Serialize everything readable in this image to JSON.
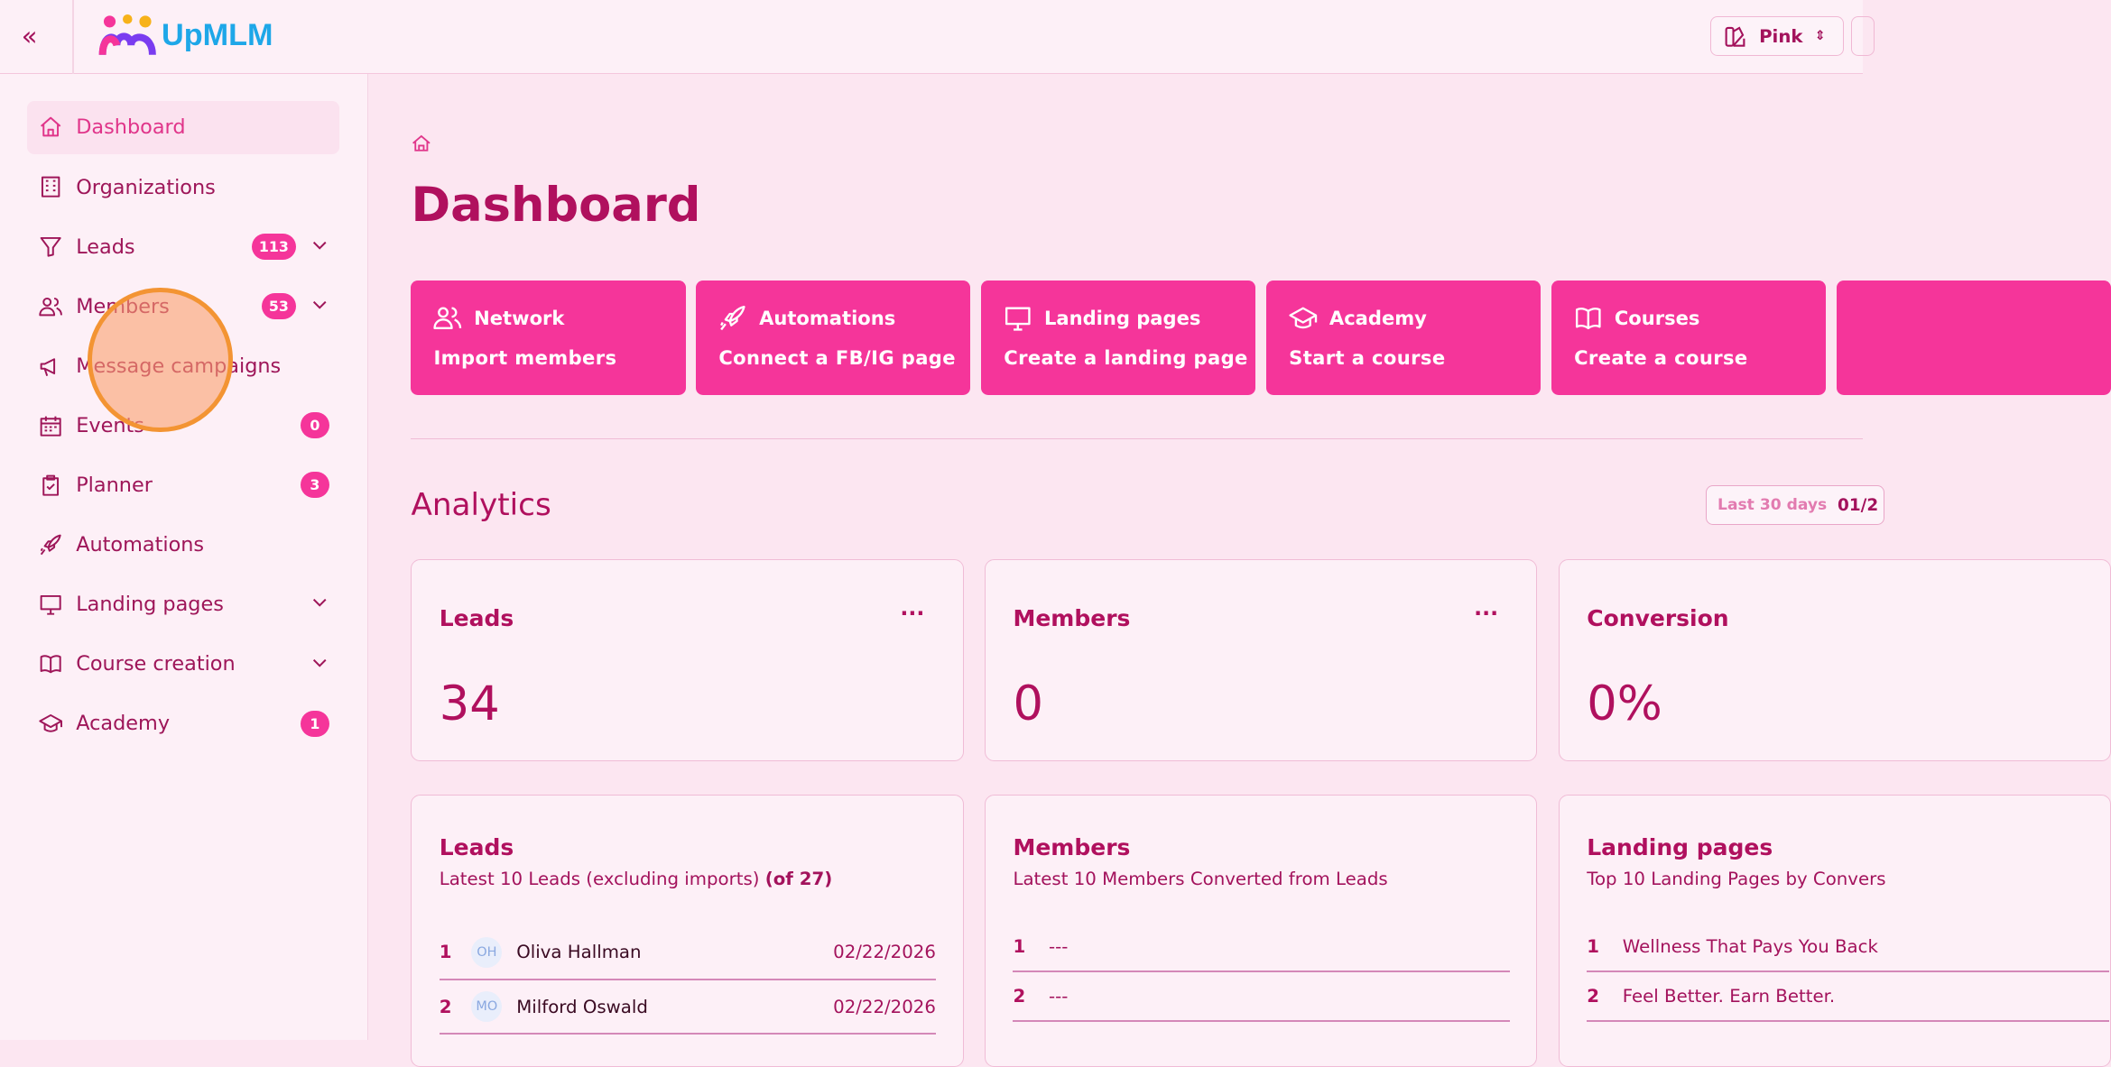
{
  "header": {
    "brand": "UpMLM",
    "theme_label": "Pink"
  },
  "sidebar": {
    "items": [
      {
        "label": "Dashboard",
        "icon": "home-icon",
        "active": true
      },
      {
        "label": "Organizations",
        "icon": "building-icon"
      },
      {
        "label": "Leads",
        "icon": "funnel-icon",
        "badge": "113",
        "expandable": true
      },
      {
        "label": "Members",
        "icon": "users-icon",
        "badge": "53",
        "expandable": true
      },
      {
        "label": "Message campaigns",
        "icon": "megaphone-icon"
      },
      {
        "label": "Events",
        "icon": "calendar-icon",
        "badge": "0"
      },
      {
        "label": "Planner",
        "icon": "clipboard-icon",
        "badge": "3"
      },
      {
        "label": "Automations",
        "icon": "rocket-icon"
      },
      {
        "label": "Landing pages",
        "icon": "monitor-icon",
        "expandable": true
      },
      {
        "label": "Course creation",
        "icon": "book-icon",
        "expandable": true
      },
      {
        "label": "Academy",
        "icon": "graduation-cap-icon",
        "badge": "1"
      }
    ]
  },
  "page": {
    "title": "Dashboard"
  },
  "quick_actions": [
    {
      "title": "Network",
      "action": "Import members",
      "icon": "users-icon"
    },
    {
      "title": "Automations",
      "action": "Connect a FB/IG page",
      "icon": "rocket-icon"
    },
    {
      "title": "Landing pages",
      "action": "Create a landing page",
      "icon": "monitor-icon"
    },
    {
      "title": "Academy",
      "action": "Start a course",
      "icon": "graduation-cap-icon"
    },
    {
      "title": "Courses",
      "action": "Create a course",
      "icon": "book-icon"
    }
  ],
  "analytics": {
    "title": "Analytics",
    "range_label": "Last 30 days",
    "range_value": "01/2",
    "stats": [
      {
        "title": "Leads",
        "value": "34",
        "menu": "···"
      },
      {
        "title": "Members",
        "value": "0",
        "menu": "···"
      },
      {
        "title": "Conversion",
        "value": "0%"
      }
    ],
    "lists": [
      {
        "title": "Leads",
        "subtitle": "Latest 10 Leads (excluding imports)",
        "subtitle_bold": "(of 27)",
        "rows": [
          {
            "index": "1",
            "initials": "OH",
            "name": "Oliva Hallman",
            "date": "02/22/2026"
          },
          {
            "index": "2",
            "initials": "MO",
            "name": "Milford Oswald",
            "date": "02/22/2026"
          }
        ]
      },
      {
        "title": "Members",
        "subtitle": "Latest 10 Members Converted from Leads",
        "rows": [
          {
            "index": "1",
            "name": "---"
          },
          {
            "index": "2",
            "name": "---"
          }
        ]
      },
      {
        "title": "Landing pages",
        "subtitle": "Top 10 Landing Pages by Convers",
        "rows": [
          {
            "index": "1",
            "name": "Wellness That Pays You Back"
          },
          {
            "index": "2",
            "name": "Feel Better. Earn Better."
          }
        ]
      }
    ]
  },
  "colors": {
    "accent": "#f5359a",
    "text": "#b0105e",
    "background": "#fce6f1"
  }
}
